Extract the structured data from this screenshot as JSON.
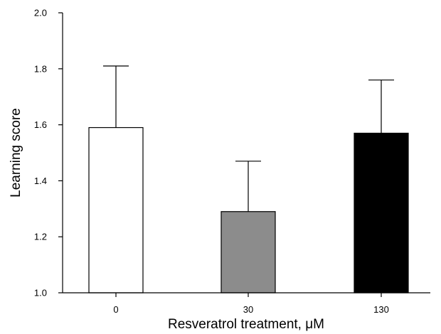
{
  "chart_data": {
    "type": "bar",
    "title": "",
    "xlabel": "Resveratrol treatment, μM",
    "ylabel": "Learning score",
    "categories": [
      "0",
      "30",
      "130"
    ],
    "values": [
      1.59,
      1.29,
      1.57
    ],
    "error_upper": [
      1.81,
      1.47,
      1.76
    ],
    "bar_colors": [
      "#ffffff",
      "#8c8c8c",
      "#000000"
    ],
    "ylim": [
      1.0,
      2.0
    ],
    "yticks": [
      "1.0",
      "1.2",
      "1.4",
      "1.6",
      "1.8",
      "2.0"
    ],
    "grid": false,
    "legend": "none"
  }
}
